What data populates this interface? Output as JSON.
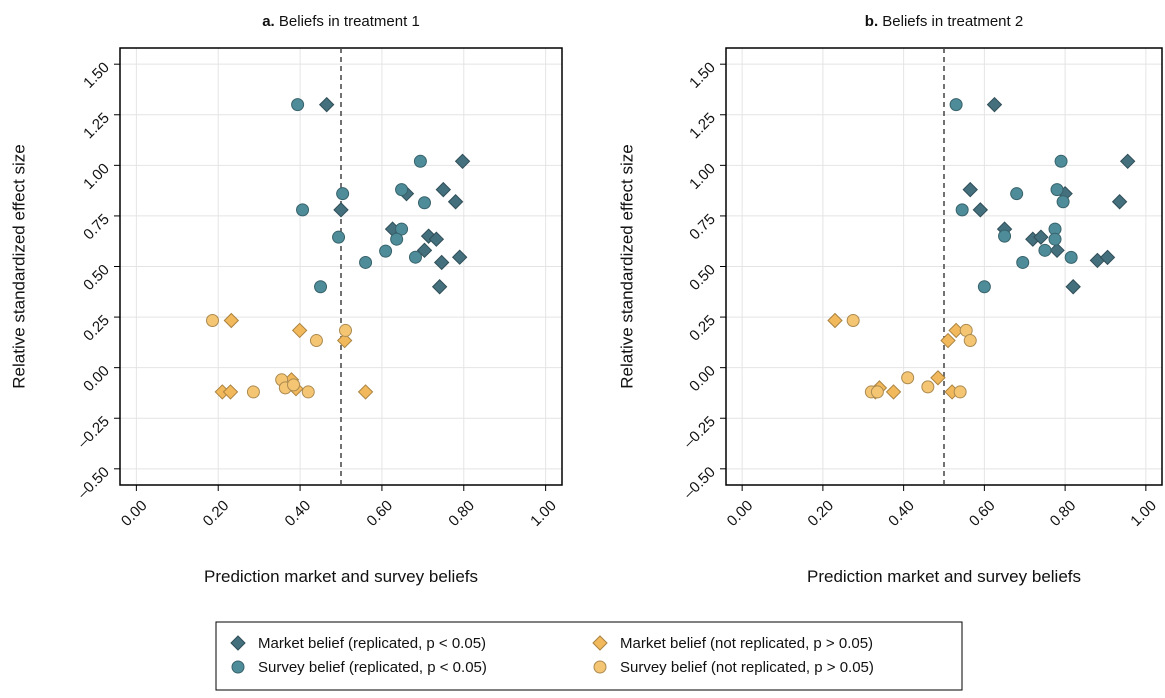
{
  "chart_data": [
    {
      "type": "scatter",
      "panel": "a.",
      "title": "Beliefs in treatment 1",
      "xlabel": "Prediction market and survey beliefs",
      "ylabel": "Relative standardized effect size",
      "xlim": [
        -0.04,
        1.04
      ],
      "ylim": [
        -0.58,
        1.58
      ],
      "xticks": [
        {
          "value": 0,
          "label": "0.00"
        },
        {
          "value": 0.2,
          "label": "0.20"
        },
        {
          "value": 0.4,
          "label": "0.40"
        },
        {
          "value": 0.6,
          "label": "0.60"
        },
        {
          "value": 0.8,
          "label": "0.80"
        },
        {
          "value": 1,
          "label": "1.00"
        }
      ],
      "yticks": [
        {
          "value": -0.5,
          "label": "–0.50"
        },
        {
          "value": -0.25,
          "label": "–0.25"
        },
        {
          "value": 0,
          "label": "0.00"
        },
        {
          "value": 0.25,
          "label": "0.25"
        },
        {
          "value": 0.5,
          "label": "0.50"
        },
        {
          "value": 0.75,
          "label": "0.75"
        },
        {
          "value": 1,
          "label": "1.00"
        },
        {
          "value": 1.25,
          "label": "1.25"
        },
        {
          "value": 1.5,
          "label": "1.50"
        }
      ],
      "grid": true,
      "vline": 0.5,
      "series": [
        {
          "name": "Market belief (replicated, p < 0.05)",
          "marker": "diamond",
          "color": "#44707d",
          "x": [
            0.465,
            0.5,
            0.797,
            0.75,
            0.66,
            0.78,
            0.626,
            0.714,
            0.733,
            0.704,
            0.746,
            0.79,
            0.741
          ],
          "y": [
            1.3,
            0.78,
            1.02,
            0.88,
            0.86,
            0.82,
            0.685,
            0.65,
            0.635,
            0.58,
            0.52,
            0.546,
            0.4
          ]
        },
        {
          "name": "Survey belief (replicated, p < 0.05)",
          "marker": "circle",
          "color": "#4f8c99",
          "x": [
            0.394,
            0.406,
            0.694,
            0.648,
            0.504,
            0.704,
            0.648,
            0.636,
            0.494,
            0.609,
            0.682,
            0.56,
            0.45
          ],
          "y": [
            1.3,
            0.78,
            1.02,
            0.88,
            0.86,
            0.815,
            0.685,
            0.635,
            0.645,
            0.576,
            0.546,
            0.52,
            0.4
          ]
        },
        {
          "name": "Market belief (not replicated, p > 0.05)",
          "marker": "diamond",
          "color": "#f2b95c",
          "x": [
            0.232,
            0.399,
            0.509,
            0.21,
            0.23,
            0.379,
            0.39,
            0.56
          ],
          "y": [
            0.233,
            0.184,
            0.134,
            -0.12,
            -0.12,
            -0.06,
            -0.104,
            -0.12
          ]
        },
        {
          "name": "Survey belief (not replicated, p > 0.05)",
          "marker": "circle",
          "color": "#f4c572",
          "x": [
            0.186,
            0.511,
            0.44,
            0.286,
            0.42,
            0.355,
            0.364,
            0.384
          ],
          "y": [
            0.233,
            0.184,
            0.134,
            -0.12,
            -0.12,
            -0.06,
            -0.1,
            -0.085
          ]
        }
      ]
    },
    {
      "type": "scatter",
      "panel": "b.",
      "title": "Beliefs in treatment 2",
      "xlabel": "Prediction market and survey beliefs",
      "ylabel": "Relative standardized effect size",
      "xlim": [
        -0.04,
        1.04
      ],
      "ylim": [
        -0.58,
        1.58
      ],
      "xticks": [
        {
          "value": 0,
          "label": "0.00"
        },
        {
          "value": 0.2,
          "label": "0.20"
        },
        {
          "value": 0.4,
          "label": "0.40"
        },
        {
          "value": 0.6,
          "label": "0.60"
        },
        {
          "value": 0.8,
          "label": "0.80"
        },
        {
          "value": 1,
          "label": "1.00"
        }
      ],
      "yticks": [
        {
          "value": -0.5,
          "label": "–0.50"
        },
        {
          "value": -0.25,
          "label": "–0.25"
        },
        {
          "value": 0,
          "label": "0.00"
        },
        {
          "value": 0.25,
          "label": "0.25"
        },
        {
          "value": 0.5,
          "label": "0.50"
        },
        {
          "value": 0.75,
          "label": "0.75"
        },
        {
          "value": 1,
          "label": "1.00"
        },
        {
          "value": 1.25,
          "label": "1.25"
        },
        {
          "value": 1.5,
          "label": "1.50"
        }
      ],
      "grid": true,
      "vline": 0.5,
      "series": [
        {
          "marker": "diamond",
          "color": "#44707d",
          "x": [
            0.625,
            0.955,
            0.565,
            0.8,
            0.59,
            0.935,
            0.65,
            0.72,
            0.74,
            0.78,
            0.88,
            0.905,
            0.82
          ],
          "y": [
            1.3,
            1.02,
            0.88,
            0.86,
            0.78,
            0.82,
            0.685,
            0.635,
            0.645,
            0.58,
            0.53,
            0.545,
            0.4
          ]
        },
        {
          "marker": "circle",
          "color": "#4f8c99",
          "x": [
            0.53,
            0.79,
            0.78,
            0.68,
            0.545,
            0.795,
            0.775,
            0.65,
            0.775,
            0.75,
            0.815,
            0.695,
            0.6
          ],
          "y": [
            1.3,
            1.02,
            0.88,
            0.86,
            0.78,
            0.82,
            0.685,
            0.65,
            0.635,
            0.58,
            0.545,
            0.52,
            0.4
          ]
        },
        {
          "marker": "diamond",
          "color": "#f2b95c",
          "x": [
            0.23,
            0.53,
            0.51,
            0.34,
            0.33,
            0.375,
            0.485,
            0.52
          ],
          "y": [
            0.233,
            0.184,
            0.134,
            -0.1,
            -0.12,
            -0.12,
            -0.05,
            -0.12
          ]
        },
        {
          "marker": "circle",
          "color": "#f4c572",
          "x": [
            0.275,
            0.555,
            0.565,
            0.32,
            0.54,
            0.46,
            0.41,
            0.335
          ],
          "y": [
            0.233,
            0.184,
            0.134,
            -0.12,
            -0.12,
            -0.095,
            -0.05,
            -0.12
          ]
        }
      ]
    }
  ]
}
